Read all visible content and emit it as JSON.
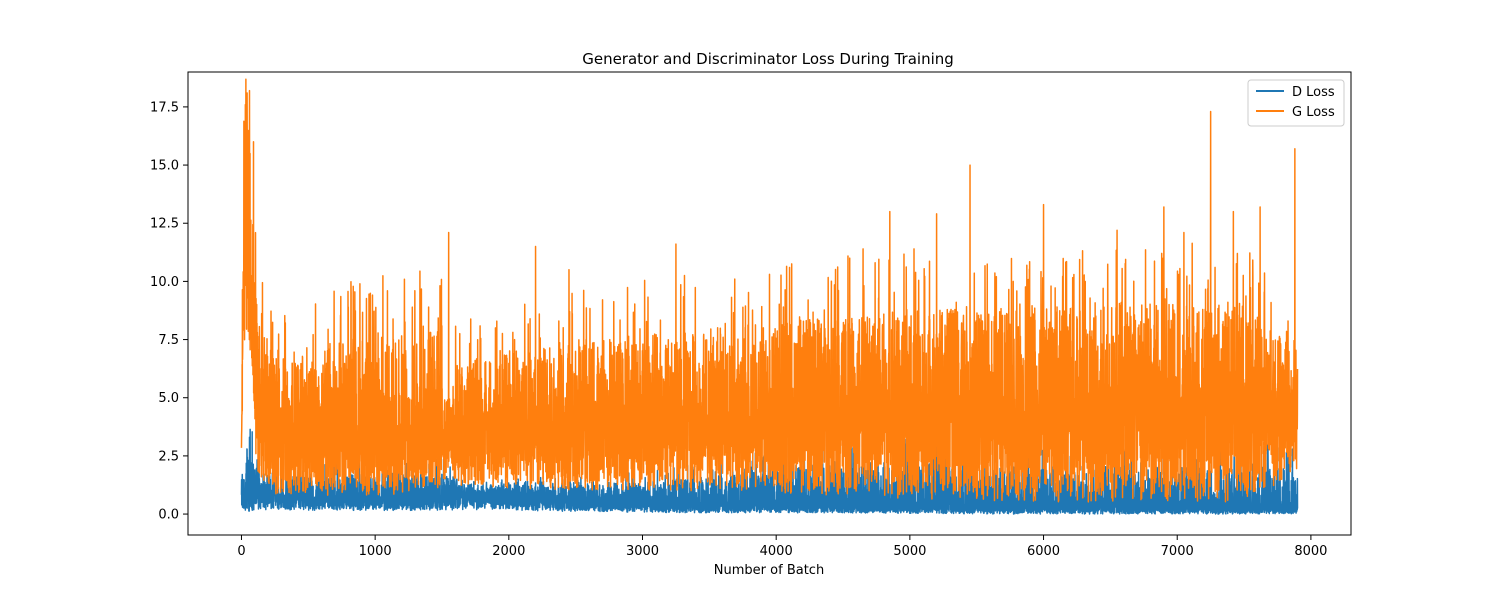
{
  "chart_data": {
    "type": "line",
    "title": "Generator and Discriminator Loss During Training",
    "xlabel": "Number of Batch",
    "ylabel": "",
    "xlim": [
      -400,
      8300
    ],
    "ylim": [
      -0.9,
      19.0
    ],
    "xticks": [
      0,
      1000,
      2000,
      3000,
      4000,
      5000,
      6000,
      7000,
      8000
    ],
    "xtick_labels": [
      "0",
      "1000",
      "2000",
      "3000",
      "4000",
      "5000",
      "6000",
      "7000",
      "8000"
    ],
    "yticks": [
      0.0,
      2.5,
      5.0,
      7.5,
      10.0,
      12.5,
      15.0,
      17.5
    ],
    "ytick_labels": [
      "0.0",
      "2.5",
      "5.0",
      "7.5",
      "10.0",
      "12.5",
      "15.0",
      "17.5"
    ],
    "grid": false,
    "legend": {
      "position": "top-right",
      "labels": [
        "D Loss",
        "G Loss"
      ]
    },
    "x_range": [
      0,
      7900
    ],
    "series": [
      {
        "name": "D Loss",
        "color": "#1f77b4",
        "profile": [
          [
            0,
            1.0,
            0.3,
            1.5
          ],
          [
            20,
            0.6,
            0.05,
            1.5
          ],
          [
            60,
            0.7,
            0.05,
            3.3
          ],
          [
            100,
            0.9,
            0.1,
            2.0
          ],
          [
            200,
            0.8,
            0.2,
            1.8
          ],
          [
            600,
            0.7,
            0.15,
            1.6
          ],
          [
            1000,
            0.6,
            0.15,
            1.8
          ],
          [
            1550,
            0.6,
            0.15,
            1.7
          ],
          [
            1600,
            0.9,
            0.2,
            1.3
          ],
          [
            2500,
            0.5,
            0.1,
            1.2
          ],
          [
            3500,
            0.4,
            0.05,
            1.6
          ],
          [
            4500,
            0.35,
            0.05,
            2.3
          ],
          [
            5500,
            0.3,
            0.0,
            2.1
          ],
          [
            6500,
            0.3,
            0.0,
            1.9
          ],
          [
            7000,
            0.25,
            0.0,
            2.0
          ],
          [
            7900,
            0.25,
            0.0,
            2.0
          ]
        ],
        "spikes": [
          [
            60,
            3.3
          ],
          [
            1350,
            1.9
          ],
          [
            4450,
            2.3
          ],
          [
            6400,
            2.1
          ],
          [
            6850,
            2.0
          ],
          [
            7320,
            2.5
          ],
          [
            7640,
            2.0
          ]
        ]
      },
      {
        "name": "G Loss",
        "color": "#ff7f0e",
        "profile": [
          [
            0,
            3.0,
            2.8,
            6.5
          ],
          [
            15,
            10.0,
            6.5,
            14.0
          ],
          [
            40,
            13.0,
            8.0,
            18.1
          ],
          [
            80,
            8.0,
            5.0,
            12.0
          ],
          [
            120,
            4.5,
            1.0,
            8.5
          ],
          [
            300,
            3.5,
            0.8,
            7.0
          ],
          [
            800,
            3.3,
            0.8,
            7.5
          ],
          [
            1500,
            3.3,
            0.8,
            8.0
          ],
          [
            1560,
            2.8,
            2.3,
            4.0
          ],
          [
            1600,
            3.6,
            1.2,
            6.5
          ],
          [
            2500,
            3.8,
            1.0,
            7.5
          ],
          [
            3500,
            4.0,
            1.0,
            8.0
          ],
          [
            4500,
            4.2,
            0.8,
            8.5
          ],
          [
            5500,
            4.3,
            0.5,
            9.0
          ],
          [
            6500,
            4.5,
            0.5,
            9.0
          ],
          [
            7500,
            4.5,
            0.5,
            9.0
          ],
          [
            7900,
            4.5,
            1.8,
            7.0
          ]
        ],
        "spikes": [
          [
            42,
            18.1
          ],
          [
            60,
            18.2
          ],
          [
            90,
            16.0
          ],
          [
            1550,
            12.1
          ],
          [
            2200,
            11.5
          ],
          [
            2450,
            10.5
          ],
          [
            3250,
            11.6
          ],
          [
            3950,
            10.3
          ],
          [
            4100,
            10.6
          ],
          [
            4550,
            11.0
          ],
          [
            4650,
            11.4
          ],
          [
            4850,
            13.0
          ],
          [
            5200,
            12.9
          ],
          [
            5450,
            15.0
          ],
          [
            6000,
            13.3
          ],
          [
            6550,
            12.2
          ],
          [
            6900,
            13.2
          ],
          [
            7050,
            12.1
          ],
          [
            7250,
            17.3
          ],
          [
            7420,
            13.0
          ],
          [
            7620,
            13.2
          ],
          [
            7880,
            15.7
          ]
        ]
      }
    ]
  }
}
